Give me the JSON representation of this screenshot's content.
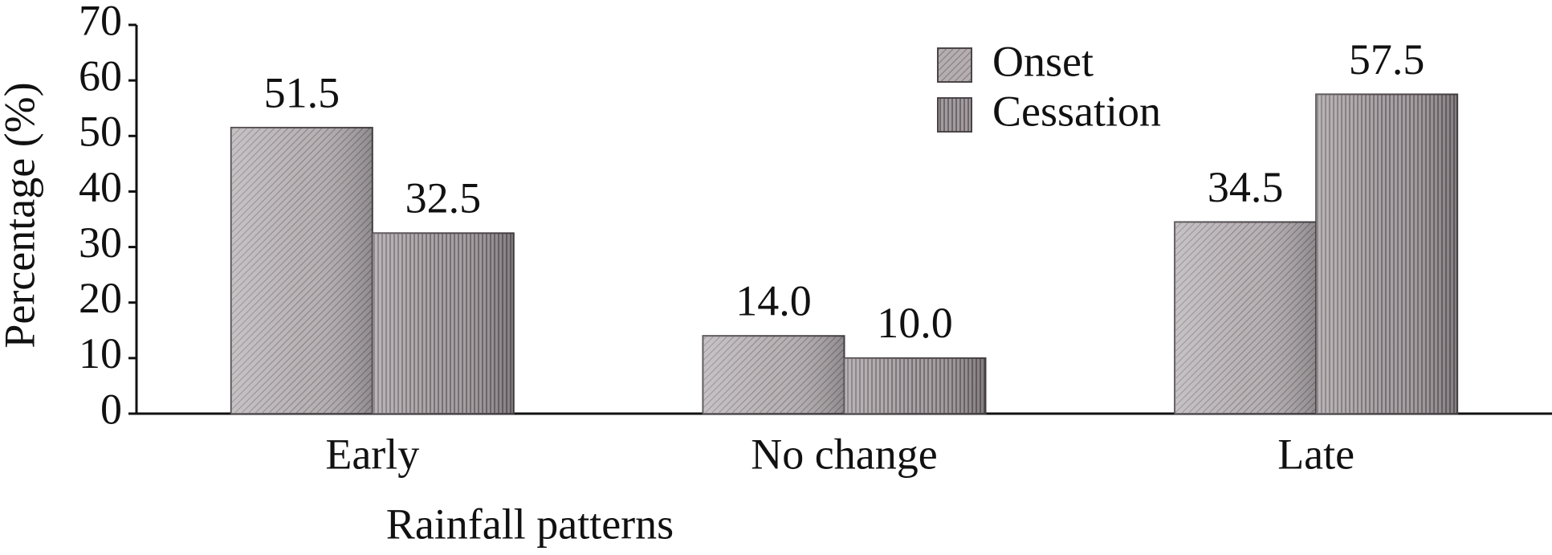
{
  "chart_data": {
    "type": "bar",
    "x_label": "Rainfall patterns",
    "y_label": "Percentage (%)",
    "categories": [
      "Early",
      "No change",
      "Late"
    ],
    "series": [
      {
        "name": "Onset",
        "color": "#b4aeb1",
        "values": [
          51.5,
          14.0,
          34.5
        ],
        "value_labels": [
          "51.5",
          "14.0",
          "34.5"
        ]
      },
      {
        "name": "Cessation",
        "color": "#a39c9f",
        "values": [
          32.5,
          10.0,
          57.5
        ],
        "value_labels": [
          "32.5",
          "10.0",
          "57.5"
        ]
      }
    ],
    "ylim": [
      0,
      70
    ],
    "yticks": [
      0,
      10,
      20,
      30,
      40,
      50,
      60,
      70
    ],
    "grid": false,
    "legend": "upper right"
  }
}
